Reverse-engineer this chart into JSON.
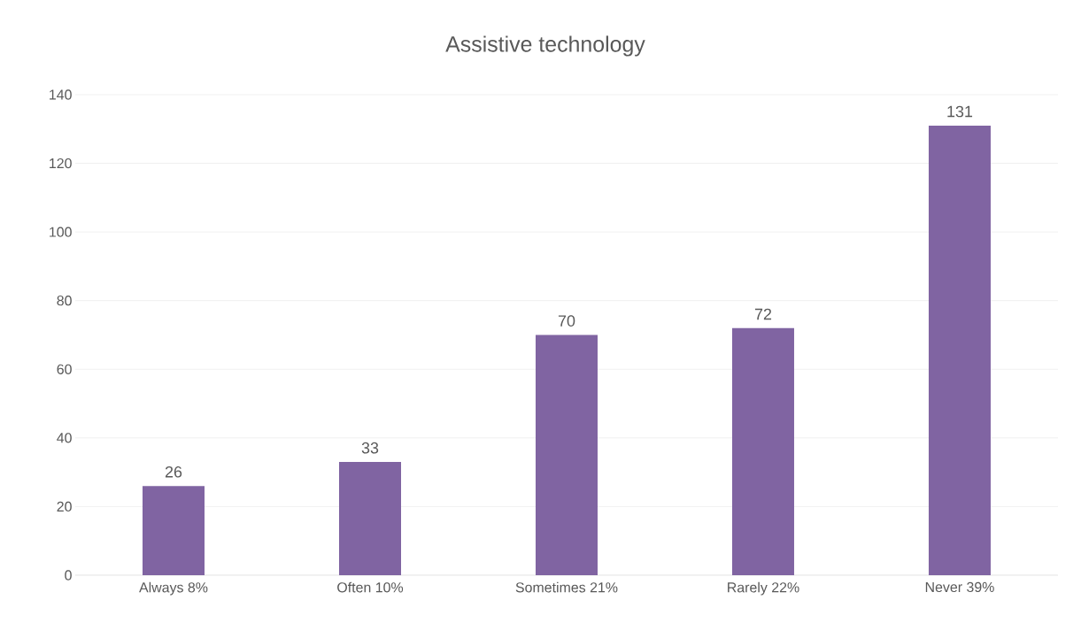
{
  "chart_data": {
    "type": "bar",
    "title": "Assistive technology",
    "categories": [
      "Always 8%",
      "Often 10%",
      "Sometimes 21%",
      "Rarely 22%",
      "Never 39%"
    ],
    "values": [
      26,
      33,
      70,
      72,
      131
    ],
    "color": "#8064a2",
    "ylim": [
      0,
      140
    ],
    "yticks": [
      0,
      20,
      40,
      60,
      80,
      100,
      120,
      140
    ],
    "grid": "y",
    "data_labels": true
  }
}
